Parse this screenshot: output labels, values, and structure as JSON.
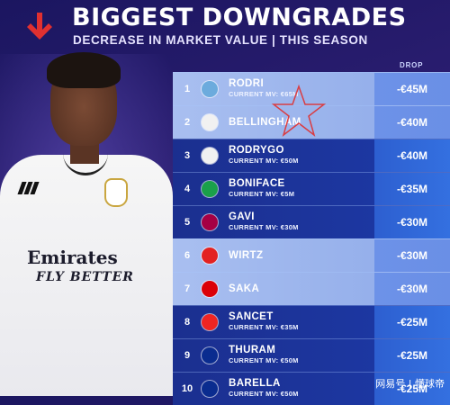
{
  "header": {
    "title": "BIGGEST DOWNGRADES",
    "subtitle": "DECREASE IN MARKET VALUE | THIS SEASON",
    "drop_label": "DROP"
  },
  "colors": {
    "accent_red": "#e03030",
    "row_light": "#a9bff0",
    "row_dark": "#1d3aa8",
    "drop_cell": "#3470e0"
  },
  "player_shirt": {
    "sponsor_line1": "Emirates",
    "sponsor_line2": "FLY BETTER"
  },
  "rows": [
    {
      "rank": "1",
      "name": "RODRI",
      "mv": "CURRENT MV: €65M",
      "drop": "-€45M",
      "club_icon": "man-city-badge",
      "badge_color": "#6cabdd",
      "style": "light"
    },
    {
      "rank": "2",
      "name": "BELLINGHAM",
      "mv": "",
      "drop": "-€40M",
      "club_icon": "real-madrid-badge",
      "badge_color": "#f1f1f1",
      "style": "light"
    },
    {
      "rank": "3",
      "name": "RODRYGO",
      "mv": "CURRENT MV: €50M",
      "drop": "-€40M",
      "club_icon": "real-madrid-badge",
      "badge_color": "#f1f1f1",
      "style": "dark"
    },
    {
      "rank": "4",
      "name": "BONIFACE",
      "mv": "CURRENT MV: €5M",
      "drop": "-€35M",
      "club_icon": "leverkusen-badge",
      "badge_color": "#1aa04a",
      "style": "dark"
    },
    {
      "rank": "5",
      "name": "GAVI",
      "mv": "CURRENT MV: €30M",
      "drop": "-€30M",
      "club_icon": "barcelona-badge",
      "badge_color": "#a50044",
      "style": "dark"
    },
    {
      "rank": "6",
      "name": "WIRTZ",
      "mv": "",
      "drop": "-€30M",
      "club_icon": "leverkusen-badge",
      "badge_color": "#e32221",
      "style": "light"
    },
    {
      "rank": "7",
      "name": "SAKA",
      "mv": "",
      "drop": "-€30M",
      "club_icon": "arsenal-badge",
      "badge_color": "#db0007",
      "style": "light"
    },
    {
      "rank": "8",
      "name": "SANCET",
      "mv": "CURRENT MV: €35M",
      "drop": "-€25M",
      "club_icon": "athletic-badge",
      "badge_color": "#ee2523",
      "style": "dark"
    },
    {
      "rank": "9",
      "name": "THURAM",
      "mv": "CURRENT MV: €50M",
      "drop": "-€25M",
      "club_icon": "inter-badge",
      "badge_color": "#0a2c8f",
      "style": "dark"
    },
    {
      "rank": "10",
      "name": "BARELLA",
      "mv": "CURRENT MV: €50M",
      "drop": "-€25M",
      "club_icon": "inter-badge",
      "badge_color": "#0a2c8f",
      "style": "dark"
    }
  ],
  "watermark": "网易号 | 懂球帝"
}
